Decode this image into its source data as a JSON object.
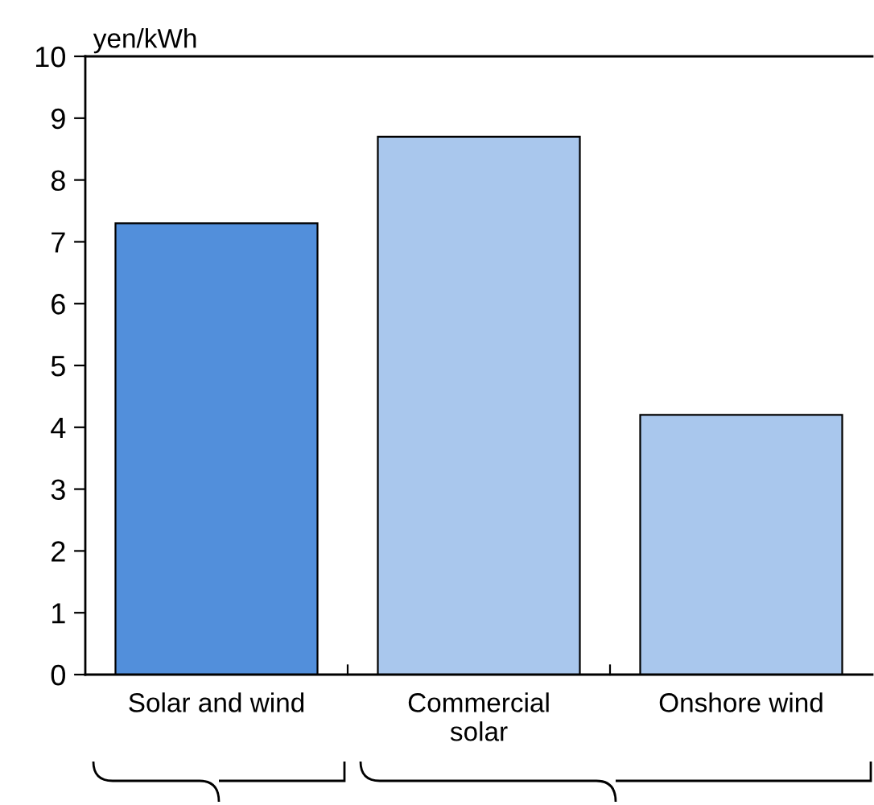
{
  "chart_data": {
    "type": "bar",
    "ylabel": "yen/kWh",
    "categories": [
      "Solar and wind",
      "Commercial\nsolar",
      "Onshore wind"
    ],
    "values": [
      7.3,
      8.7,
      4.2
    ],
    "colors": [
      "#528fdb",
      "#a9c7ed",
      "#a9c7ed"
    ],
    "ylim": [
      0,
      10
    ],
    "yticks": [
      0,
      1,
      2,
      3,
      4,
      5,
      6,
      7,
      8,
      9,
      10
    ],
    "grid": false,
    "legend": false
  }
}
